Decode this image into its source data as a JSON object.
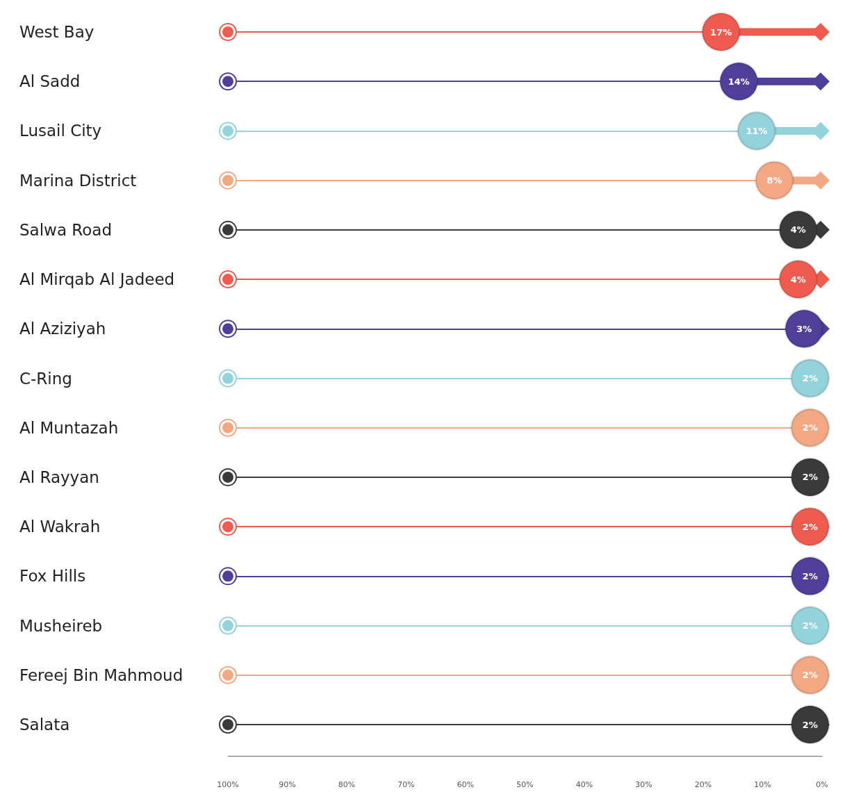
{
  "chart_data": {
    "type": "lollipop",
    "orientation": "horizontal",
    "marker": "circle",
    "grid": "y",
    "categories": [
      "West Bay",
      "Al Sadd",
      "Lusail City",
      "Marina District",
      "Salwa Road",
      "Al Mirqab Al Jadeed",
      "Al Aziziyah",
      "C-Ring",
      "Al Muntazah",
      "Al Rayyan",
      "Al Wakrah",
      "Fox Hills",
      "Musheireb",
      "Fereej Bin Mahmoud",
      "Salata"
    ],
    "values": [
      17,
      14,
      11,
      8,
      4,
      4,
      3,
      2,
      2,
      2,
      2,
      2,
      2,
      2,
      2
    ],
    "value_labels": [
      "17%",
      "14%",
      "11%",
      "8%",
      "4%",
      "4%",
      "3%",
      "2%",
      "2%",
      "2%",
      "2%",
      "2%",
      "2%",
      "2%",
      "2%"
    ],
    "colors": [
      "#ef5b4f",
      "#4f3f9a",
      "#93d3db",
      "#f2a883",
      "#3a3a3a",
      "#ef5b4f",
      "#4f3f9a",
      "#93d3db",
      "#f2a883",
      "#3a3a3a",
      "#ef5b4f",
      "#4f3f9a",
      "#93d3db",
      "#f2a883",
      "#3a3a3a"
    ],
    "xlim": [
      100,
      0
    ],
    "xticks": [
      {
        "value": 100,
        "label": "100%"
      },
      {
        "value": 90,
        "label": "90%"
      },
      {
        "value": 80,
        "label": "80%"
      },
      {
        "value": 70,
        "label": "70%"
      },
      {
        "value": 60,
        "label": "60%"
      },
      {
        "value": 50,
        "label": "50%"
      },
      {
        "value": 40,
        "label": "40%"
      },
      {
        "value": 30,
        "label": "30%"
      },
      {
        "value": 20,
        "label": "20%"
      },
      {
        "value": 10,
        "label": "10%"
      },
      {
        "value": 0,
        "label": "0%"
      }
    ]
  }
}
